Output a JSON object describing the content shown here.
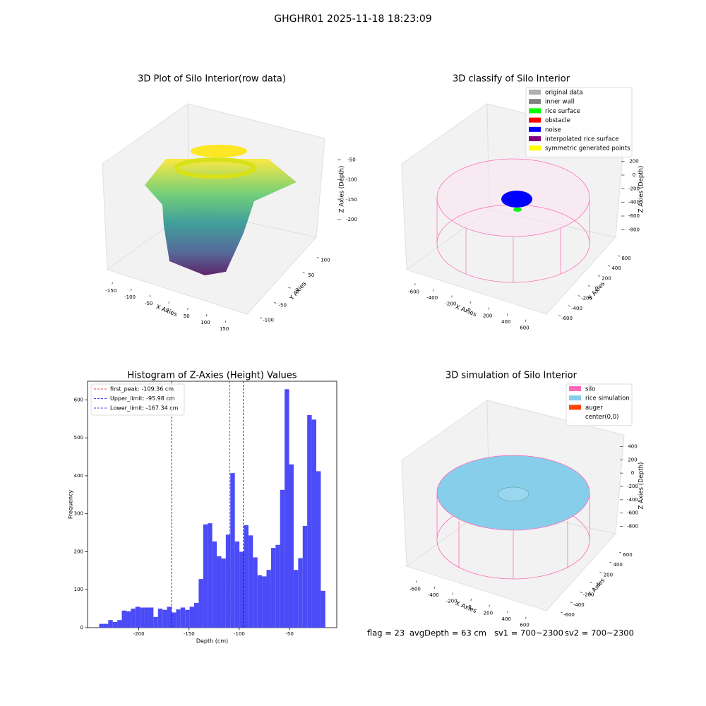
{
  "title": "GHGHR01 2025-11-18 18:23:09",
  "chart_data": [
    {
      "type": "scatter3d",
      "title": "3D Plot of Silo Interior(row data)",
      "xlabel": "X Axies",
      "ylabel": "Y Axies",
      "zlabel": "Z Axies (Depth)",
      "xlim": [
        -160,
        160
      ],
      "xticks": [
        -150,
        -100,
        -50,
        0,
        50,
        100,
        150
      ],
      "ylim": [
        -110,
        120
      ],
      "yticks": [
        -100,
        -50,
        0,
        50,
        100
      ],
      "zlim": [
        -230,
        -30
      ],
      "zticks": [
        -50,
        -100,
        -150,
        -200
      ]
    },
    {
      "type": "scatter3d",
      "title": "3D classify of Silo Interior",
      "xlabel": "X Axies",
      "ylabel": "Y Axies",
      "zlabel": "Z Axies (Depth)",
      "xlim": [
        -700,
        700
      ],
      "xticks": [
        -600,
        -400,
        -200,
        0,
        200,
        400,
        600
      ],
      "ylim": [
        -700,
        700
      ],
      "yticks": [
        -600,
        -400,
        -200,
        0,
        200,
        400,
        600
      ],
      "zlim": [
        -900,
        300
      ],
      "zticks": [
        200,
        0,
        -200,
        -400,
        -600,
        -800
      ],
      "legend": [
        {
          "name": "original data",
          "color": "#b0b0b0"
        },
        {
          "name": "inner wall",
          "color": "#808080"
        },
        {
          "name": "rice surface",
          "color": "#00ff00"
        },
        {
          "name": "obstacle",
          "color": "#ff0000"
        },
        {
          "name": "noise",
          "color": "#0000ff"
        },
        {
          "name": "interpolated rice surface",
          "color": "#800080"
        },
        {
          "name": "symmetric generated points",
          "color": "#ffff00"
        }
      ]
    },
    {
      "type": "histogram",
      "title": "Histogram of Z-Axies (Height) Values",
      "xlabel": "Depth (cm)",
      "ylabel": "Frequency",
      "color": "#4b4bf7",
      "bins": [
        -239.4,
        -234.9,
        -230.4,
        -225.9,
        -221.4,
        -216.9,
        -212.4,
        -207.9,
        -203.4,
        -198.9,
        -194.4,
        -189.9,
        -185.4,
        -180.9,
        -176.4,
        -171.9,
        -167.4,
        -162.9,
        -158.4,
        -153.9,
        -149.4,
        -144.9,
        -140.4,
        -135.9,
        -131.4,
        -126.9,
        -122.4,
        -117.9,
        -113.4,
        -108.9,
        -104.4,
        -99.9,
        -95.4,
        -90.9,
        -86.4,
        -81.9,
        -77.4,
        -72.9,
        -68.4,
        -63.9,
        -59.4,
        -54.9,
        -50.4,
        -45.9,
        -41.4,
        -36.9,
        -32.4,
        -27.9,
        -23.4,
        -18.9,
        -14.4
      ],
      "values": [
        10,
        10,
        20,
        15,
        20,
        45,
        43,
        50,
        55,
        53,
        53,
        53,
        28,
        50,
        47,
        55,
        40,
        48,
        53,
        47,
        55,
        65,
        128,
        272,
        275,
        227,
        188,
        182,
        245,
        407,
        227,
        200,
        270,
        243,
        185,
        138,
        135,
        152,
        210,
        218,
        363,
        628,
        430,
        152,
        183,
        268,
        560,
        548,
        412,
        97
      ],
      "xlim": [
        -251,
        -3
      ],
      "xticks": [
        -200,
        -150,
        -100,
        -50
      ],
      "ylim": [
        0,
        649
      ],
      "yticks": [
        0,
        100,
        200,
        300,
        400,
        500,
        600
      ],
      "vlines": [
        {
          "label": "first_peak: -109.36 cm",
          "value": -109.36,
          "color": "#ff0000"
        },
        {
          "label": "Upper_limit: -95.98 cm",
          "value": -95.98,
          "color": "#0000ff"
        },
        {
          "label": "Lower_limit: -167.34 cm",
          "value": -167.34,
          "color": "#0000ff"
        }
      ],
      "legend_loc": "upper left"
    },
    {
      "type": "surface3d",
      "title": "3D simulation of Silo Interior",
      "xlabel": "X Axies",
      "ylabel": "Y Axies",
      "zlabel": "Z Axies (Depth)",
      "xlim": [
        -700,
        700
      ],
      "xticks": [
        -600,
        -400,
        -200,
        0,
        200,
        400,
        600
      ],
      "ylim": [
        -700,
        700
      ],
      "yticks": [
        -600,
        -400,
        -200,
        0,
        200,
        400,
        600
      ],
      "zlim": [
        -900,
        500
      ],
      "zticks": [
        400,
        200,
        0,
        -200,
        -400,
        -600,
        -800
      ],
      "legend": [
        {
          "name": "silo",
          "color": "#ff69b4"
        },
        {
          "name": "rice simulation",
          "color": "#87ceeb"
        },
        {
          "name": "auger",
          "color": "#ff4500"
        },
        {
          "name": "center(0,0)",
          "color": "#ffffff"
        }
      ]
    }
  ],
  "footer": [
    "flag = 23",
    "avgDepth = 63 cm",
    "sv1 = 700~2300",
    "sv2 = 700~2300"
  ]
}
